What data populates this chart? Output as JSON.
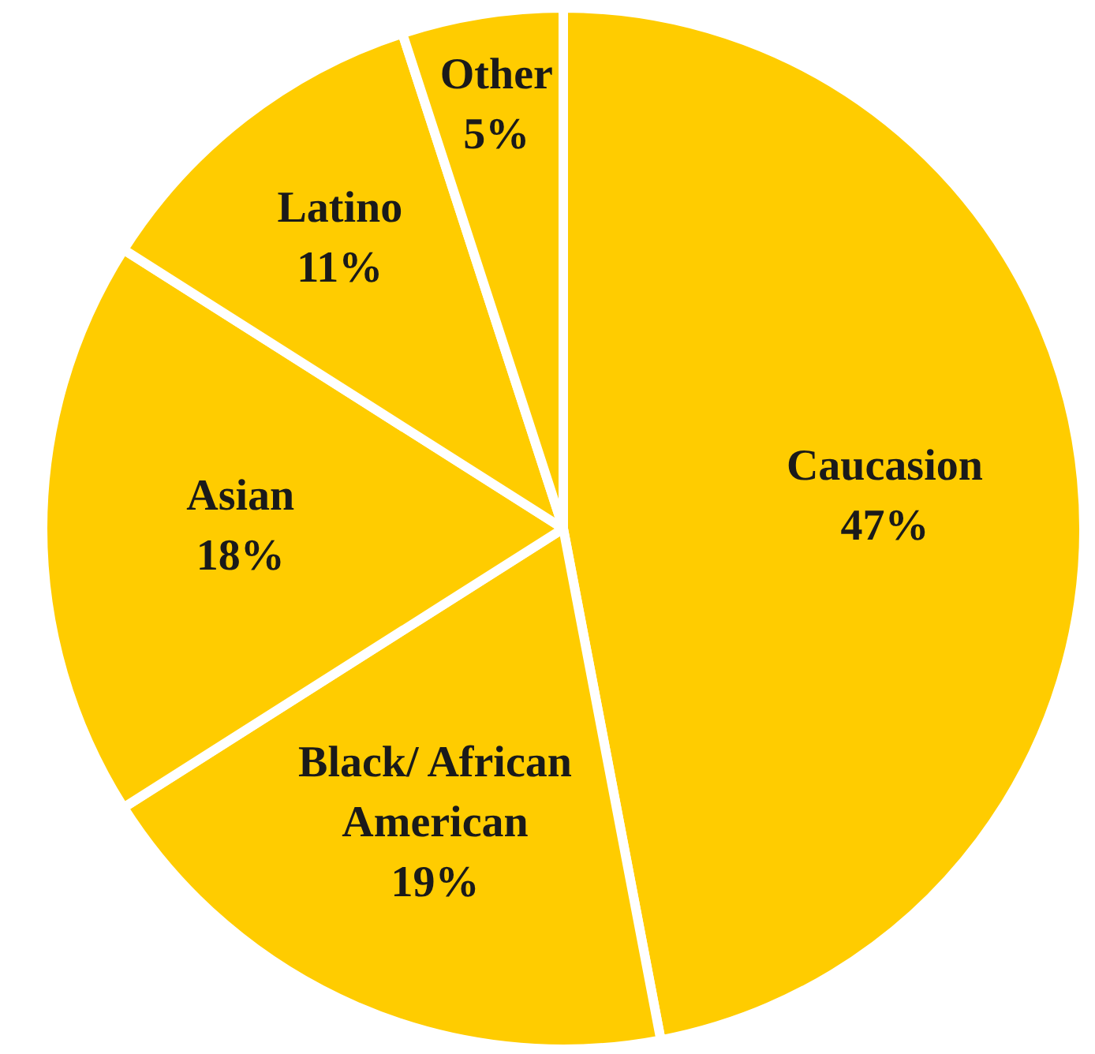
{
  "chart_data": {
    "type": "pie",
    "categories": [
      "Caucasion",
      "Black/ African American",
      "Asian",
      "Latino",
      "Other"
    ],
    "values": [
      47,
      19,
      18,
      11,
      5
    ],
    "value_labels": [
      "47%",
      "19%",
      "18%",
      "11%",
      "5%"
    ],
    "colors": [
      "#ffcc00",
      "#ffcc00",
      "#ffcc00",
      "#ffcc00",
      "#ffcc00"
    ],
    "legend": false
  }
}
